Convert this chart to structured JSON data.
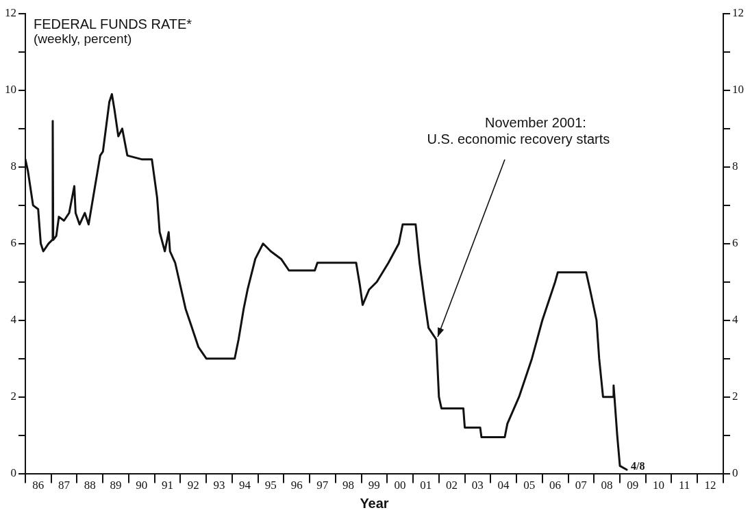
{
  "chart_data": {
    "type": "line",
    "title": "FEDERAL FUNDS RATE*",
    "subtitle": "(weekly, percent)",
    "xlabel": "Year",
    "x": [
      "1986-01-01",
      "1986-02-06",
      "1986-04-20",
      "1986-07-01",
      "1986-08-07",
      "1986-09-12",
      "1986-11-24",
      "1987-01-19",
      "1987-01-23",
      "1987-01-30",
      "1987-03-14",
      "1987-04-20",
      "1987-07-01",
      "1987-09-12",
      "1987-11-24",
      "1987-12-12",
      "1988-02-06",
      "1988-04-20",
      "1988-06-13",
      "1988-09-12",
      "1988-11-24",
      "1989-01-01",
      "1989-04-02",
      "1989-05-08",
      "1989-06-13",
      "1989-08-07",
      "1989-10-01",
      "1989-12-12",
      "1990-07-01",
      "1990-11-24",
      "1991-02-06",
      "1991-03-14",
      "1991-05-26",
      "1991-07-19",
      "1991-08-07",
      "1991-10-19",
      "1992-03-14",
      "1992-05-26",
      "1992-09-12",
      "1993-01-01",
      "1994-02-06",
      "1994-04-02",
      "1994-06-13",
      "1994-08-07",
      "1994-11-24",
      "1995-03-14",
      "1995-07-01",
      "1995-11-24",
      "1996-03-14",
      "1997-03-14",
      "1997-04-20",
      "1998-10-19",
      "1998-12-12",
      "1999-01-19",
      "1999-04-20",
      "1999-08-07",
      "2000-01-19",
      "2000-06-13",
      "2000-08-07",
      "2001-02-06",
      "2001-04-02",
      "2001-06-13",
      "2001-08-07",
      "2001-11-24",
      "2002-01-01",
      "2002-02-06",
      "2002-12-12",
      "2003-01-01",
      "2003-08-07",
      "2003-08-25",
      "2004-07-19",
      "2004-08-25",
      "2005-02-06",
      "2005-08-07",
      "2006-01-01",
      "2006-07-01",
      "2006-08-07",
      "2007-09-12",
      "2007-11-06",
      "2008-02-06",
      "2008-03-14",
      "2008-05-08",
      "2008-10-01",
      "2008-10-04",
      "2008-11-24",
      "2009-01-01",
      "2009-04-08"
    ],
    "series": [
      {
        "color": "#111111",
        "values": [
          8.2,
          7.9,
          7.0,
          6.9,
          6.0,
          5.8,
          6.0,
          6.1,
          9.2,
          6.1,
          6.2,
          6.7,
          6.6,
          6.8,
          7.5,
          6.8,
          6.5,
          6.8,
          6.5,
          7.5,
          8.3,
          8.4,
          9.7,
          9.9,
          9.5,
          8.8,
          9.0,
          8.3,
          8.2,
          8.2,
          7.2,
          6.3,
          5.8,
          6.3,
          5.8,
          5.5,
          4.3,
          3.9,
          3.3,
          3.0,
          3.0,
          3.5,
          4.3,
          4.8,
          5.6,
          6.0,
          5.8,
          5.6,
          5.3,
          5.3,
          5.5,
          5.5,
          4.9,
          4.4,
          4.8,
          5.0,
          5.5,
          6.0,
          6.5,
          6.5,
          5.5,
          4.5,
          3.8,
          3.5,
          2.0,
          1.7,
          1.7,
          1.2,
          1.2,
          0.95,
          0.95,
          1.3,
          2.0,
          3.0,
          4.0,
          5.0,
          5.25,
          5.25,
          4.8,
          4.0,
          3.0,
          2.0,
          2.0,
          2.3,
          1.0,
          0.2,
          0.1
        ]
      }
    ],
    "xlim": [
      "1986",
      "2013"
    ],
    "xticks": [
      {
        "value": "1986",
        "label": null
      },
      {
        "value": "1986-07",
        "label": "86"
      },
      {
        "value": "1987",
        "label": null
      },
      {
        "value": "1987-07",
        "label": "87"
      },
      {
        "value": "1988",
        "label": null
      },
      {
        "value": "1988-07",
        "label": "88"
      },
      {
        "value": "1989",
        "label": null
      },
      {
        "value": "1989-07",
        "label": "89"
      },
      {
        "value": "1990",
        "label": null
      },
      {
        "value": "1990-07",
        "label": "90"
      },
      {
        "value": "1991",
        "label": null
      },
      {
        "value": "1991-07",
        "label": "91"
      },
      {
        "value": "1992",
        "label": null
      },
      {
        "value": "1992-07",
        "label": "92"
      },
      {
        "value": "1993",
        "label": null
      },
      {
        "value": "1993-07",
        "label": "93"
      },
      {
        "value": "1994",
        "label": null
      },
      {
        "value": "1994-07",
        "label": "94"
      },
      {
        "value": "1995",
        "label": null
      },
      {
        "value": "1995-07",
        "label": "95"
      },
      {
        "value": "1996",
        "label": null
      },
      {
        "value": "1996-07",
        "label": "96"
      },
      {
        "value": "1997",
        "label": null
      },
      {
        "value": "1997-07",
        "label": "97"
      },
      {
        "value": "1998",
        "label": null
      },
      {
        "value": "1998-07",
        "label": "98"
      },
      {
        "value": "1999",
        "label": null
      },
      {
        "value": "1999-07",
        "label": "99"
      },
      {
        "value": "2000",
        "label": null
      },
      {
        "value": "2000-07",
        "label": "00"
      },
      {
        "value": "2001",
        "label": null
      },
      {
        "value": "2001-07",
        "label": "01"
      },
      {
        "value": "2002",
        "label": null
      },
      {
        "value": "2002-07",
        "label": "02"
      },
      {
        "value": "2003",
        "label": null
      },
      {
        "value": "2003-07",
        "label": "03"
      },
      {
        "value": "2004",
        "label": null
      },
      {
        "value": "2004-07",
        "label": "04"
      },
      {
        "value": "2005",
        "label": null
      },
      {
        "value": "2005-07",
        "label": "05"
      },
      {
        "value": "2006",
        "label": null
      },
      {
        "value": "2006-07",
        "label": "06"
      },
      {
        "value": "2007",
        "label": null
      },
      {
        "value": "2007-07",
        "label": "07"
      },
      {
        "value": "2008",
        "label": null
      },
      {
        "value": "2008-07",
        "label": "08"
      },
      {
        "value": "2009",
        "label": null
      },
      {
        "value": "2009-07",
        "label": "09"
      },
      {
        "value": "2010",
        "label": null
      },
      {
        "value": "2010-07",
        "label": "10"
      },
      {
        "value": "2011",
        "label": null
      },
      {
        "value": "2011-07",
        "label": "11"
      },
      {
        "value": "2012",
        "label": null
      },
      {
        "value": "2012-07",
        "label": "12"
      },
      {
        "value": "2013",
        "label": null
      }
    ],
    "ylim": [
      0,
      12
    ],
    "yticks": [
      0,
      {
        "value": 1,
        "label": null
      },
      2,
      {
        "value": 3,
        "label": null
      },
      4,
      {
        "value": 5,
        "label": null
      },
      6,
      {
        "value": 7,
        "label": null
      },
      8,
      {
        "value": 9,
        "label": null
      },
      10,
      {
        "value": 11,
        "label": null
      },
      12
    ],
    "y2lim": [
      0,
      12
    ],
    "y2ticks": [
      0,
      {
        "value": 1,
        "label": null
      },
      2,
      {
        "value": 3,
        "label": null
      },
      4,
      {
        "value": 5,
        "label": null
      },
      6,
      {
        "value": 7,
        "label": null
      },
      8,
      {
        "value": 9,
        "label": null
      },
      10,
      {
        "value": 11,
        "label": null
      },
      12
    ],
    "annotations": [
      {
        "text": "November 2001:\nU.S. economic recovery starts",
        "x": "2001-11-24",
        "y": 3.5
      },
      {
        "text": "4/8",
        "x": "2009-04-08",
        "y": 0.1
      }
    ],
    "grid": false,
    "legend": false,
    "marker": "none",
    "line_style": "solid"
  }
}
